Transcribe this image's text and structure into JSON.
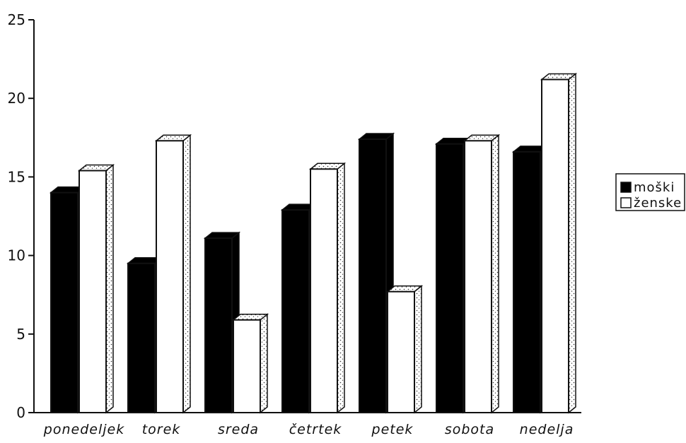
{
  "chart_data": {
    "type": "bar",
    "categories": [
      "ponedeljek",
      "torek",
      "sreda",
      "četrtek",
      "petek",
      "sobota",
      "nedelja"
    ],
    "series": [
      {
        "name": "moški",
        "values": [
          14.0,
          9.5,
          11.1,
          12.9,
          17.4,
          17.1,
          16.6
        ],
        "color": "#111111"
      },
      {
        "name": "ženske",
        "values": [
          15.4,
          17.3,
          5.9,
          15.5,
          7.7,
          17.3,
          21.2
        ],
        "color": "#ffffff"
      }
    ],
    "yticks": [
      0,
      5,
      10,
      15,
      20,
      25
    ],
    "ylim": [
      0,
      25
    ],
    "title": "",
    "xlabel": "",
    "ylabel": "",
    "legend_position": "right",
    "grid": false,
    "style": "3d-bars"
  }
}
